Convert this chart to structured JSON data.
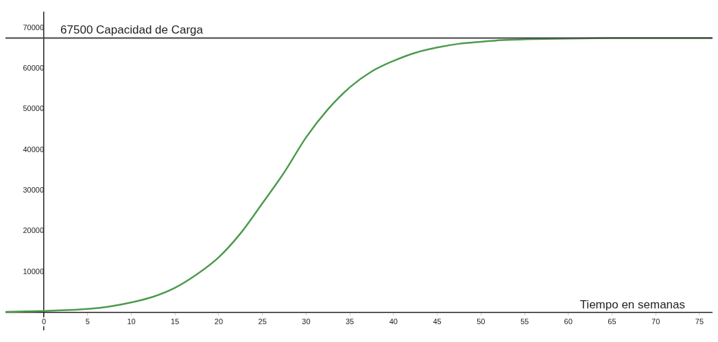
{
  "chart_data": {
    "type": "line",
    "xlabel": "Tiempo en semanas",
    "x": [
      -4.4,
      -2,
      0,
      2.5,
      5,
      7.5,
      10,
      12.5,
      15,
      17.5,
      20,
      22.5,
      25,
      27.5,
      30,
      32.5,
      35,
      37.5,
      40,
      42.5,
      45,
      47.5,
      50,
      52.5,
      55,
      60,
      65,
      70,
      76.5
    ],
    "series": [
      {
        "color": "#4c9a4c",
        "values": [
          200,
          300,
          400,
          600,
          900,
          1500,
          2500,
          3900,
          6100,
          9400,
          13600,
          19500,
          26900,
          34500,
          43100,
          50000,
          55400,
          59300,
          61900,
          63900,
          65200,
          66100,
          66600,
          67000,
          67200,
          67400,
          67500,
          67500,
          67500
        ]
      }
    ],
    "xlim": [
      -4.4,
      76.5
    ],
    "ylim": [
      -4260,
      73900
    ],
    "xticks": [
      0,
      5,
      10,
      15,
      20,
      25,
      30,
      35,
      40,
      45,
      50,
      55,
      60,
      65,
      70,
      75
    ],
    "yticks": [
      10000,
      20000,
      30000,
      40000,
      50000,
      60000,
      70000
    ],
    "ref_lines": [
      {
        "axis": "y",
        "value": 67500,
        "label": "67500 Capacidad de Carga",
        "color": "#444444"
      }
    ],
    "grid": false,
    "legend": false,
    "marker": "none",
    "line_style": "solid"
  }
}
